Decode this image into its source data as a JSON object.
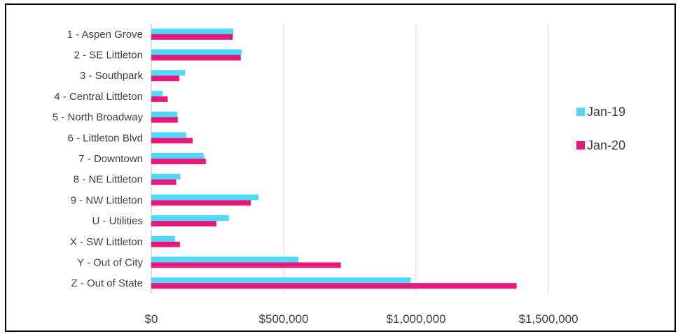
{
  "chart_data": {
    "type": "bar",
    "orientation": "horizontal",
    "categories": [
      "1 - Aspen Grove",
      "2 - SE Littleton",
      "3 - Southpark",
      "4 - Central Littleton",
      "5 - North Broadway",
      "6 - Littleton Blvd",
      "7 - Downtown",
      "8 - NE Littleton",
      "9 - NW Littleton",
      "U - Utilities",
      "X - SW Littleton",
      "Y - Out of City",
      "Z - Out of State"
    ],
    "series": [
      {
        "name": "Jan-19",
        "color": "#4dd9f7",
        "values": [
          310000,
          342000,
          128000,
          42000,
          98000,
          132000,
          198000,
          110000,
          405000,
          293000,
          90000,
          556000,
          980000
        ]
      },
      {
        "name": "Jan-20",
        "color": "#e6197a",
        "values": [
          308000,
          338000,
          106000,
          62000,
          100000,
          156000,
          206000,
          94000,
          376000,
          246000,
          108000,
          716000,
          1380000
        ]
      }
    ],
    "xlim": [
      0,
      1600000
    ],
    "xticks": [
      0,
      500000,
      1000000,
      1500000
    ],
    "xtick_labels": [
      "$0",
      "$500,000",
      "$1,000,000",
      "$1,500,000"
    ],
    "grid": true,
    "legend_position": "right"
  }
}
